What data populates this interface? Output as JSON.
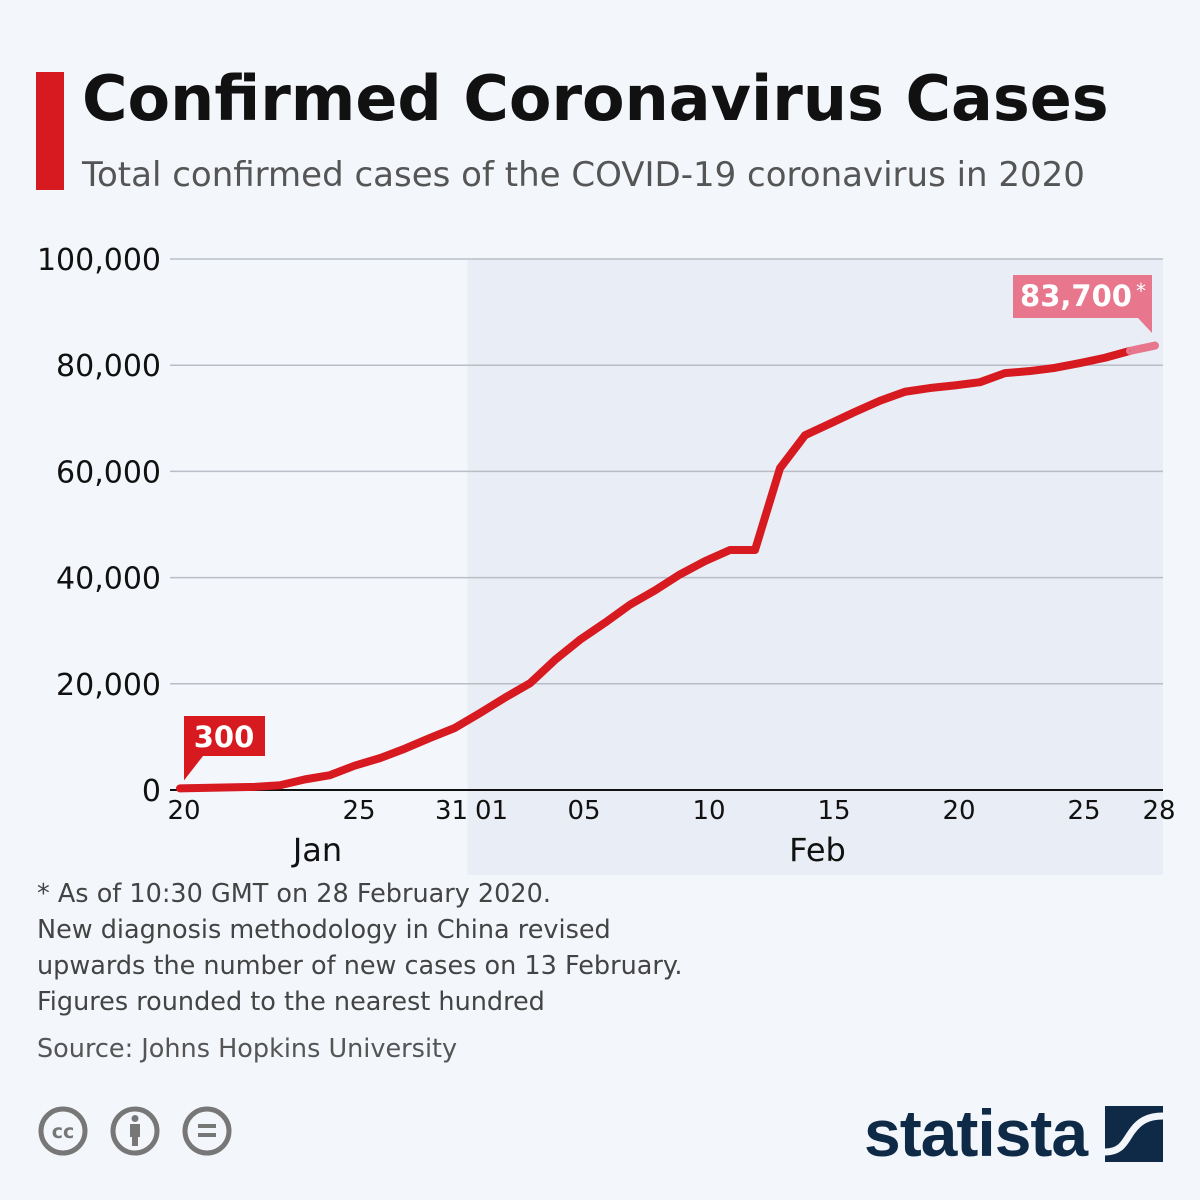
{
  "header": {
    "title": "Confirmed Coronavirus Cases",
    "subtitle": "Total confirmed cases of the COVID-19 coronavirus in 2020"
  },
  "colors": {
    "accent": "#d71920",
    "highlight": "#e8768c",
    "shade": "#e9edf5",
    "logo": "#0f2a47"
  },
  "chart_data": {
    "type": "line",
    "title": "Confirmed Coronavirus Cases",
    "xlabel": "",
    "ylabel": "",
    "ylim": [
      0,
      100000
    ],
    "yticks": [
      {
        "value": 0,
        "label": "0"
      },
      {
        "value": 20000,
        "label": "20,000"
      },
      {
        "value": 40000,
        "label": "40,000"
      },
      {
        "value": 60000,
        "label": "60,000"
      },
      {
        "value": 80000,
        "label": "80,000"
      },
      {
        "value": 100000,
        "label": "100,000"
      }
    ],
    "x_days_from_jan20": [
      0,
      1,
      2,
      3,
      4,
      5,
      6,
      7,
      8,
      9,
      10,
      11,
      12,
      13,
      14,
      15,
      16,
      17,
      18,
      19,
      20,
      21,
      22,
      23,
      24,
      25,
      26,
      27,
      28,
      29,
      30,
      31,
      32,
      33,
      34,
      35,
      36,
      37,
      38,
      39
    ],
    "values": [
      300,
      400,
      500,
      600,
      900,
      2000,
      2800,
      4600,
      6000,
      7800,
      9800,
      11700,
      14500,
      17400,
      20100,
      24500,
      28300,
      31500,
      34900,
      37600,
      40600,
      43100,
      45200,
      45200,
      60600,
      66800,
      69000,
      71200,
      73300,
      75000,
      75700,
      76200,
      76800,
      78500,
      78900,
      79500,
      80400,
      81400,
      82700,
      83700
    ],
    "xticks": [
      {
        "day": 0,
        "label": "20"
      },
      {
        "day": 7,
        "label": "25"
      },
      {
        "day": 10.7,
        "label": "31"
      },
      {
        "day": 12.3,
        "label": "01"
      },
      {
        "day": 16,
        "label": "05"
      },
      {
        "day": 21,
        "label": "10"
      },
      {
        "day": 26,
        "label": "15"
      },
      {
        "day": 31,
        "label": "20"
      },
      {
        "day": 36,
        "label": "25"
      },
      {
        "day": 39,
        "label": "28"
      }
    ],
    "months": [
      {
        "day": 5.5,
        "label": "Jan"
      },
      {
        "day": 25.5,
        "label": "Feb"
      }
    ],
    "shaded_from_day": 11.5,
    "annotations": [
      {
        "day": 0,
        "value": 300,
        "label": "300"
      },
      {
        "day": 39,
        "value": 83700,
        "label": "83,700",
        "suffix": "*"
      }
    ],
    "grid": true
  },
  "notes": [
    "* As of 10:30 GMT on 28 February 2020.",
    "New diagnosis methodology in China revised",
    "upwards the number of new cases on 13 February.",
    "Figures rounded to the nearest hundred"
  ],
  "source": "Source: Johns Hopkins University",
  "footer": {
    "logo_text": "statista",
    "license_icons": [
      "cc-icon",
      "attribution-icon",
      "no-derivatives-icon"
    ]
  }
}
